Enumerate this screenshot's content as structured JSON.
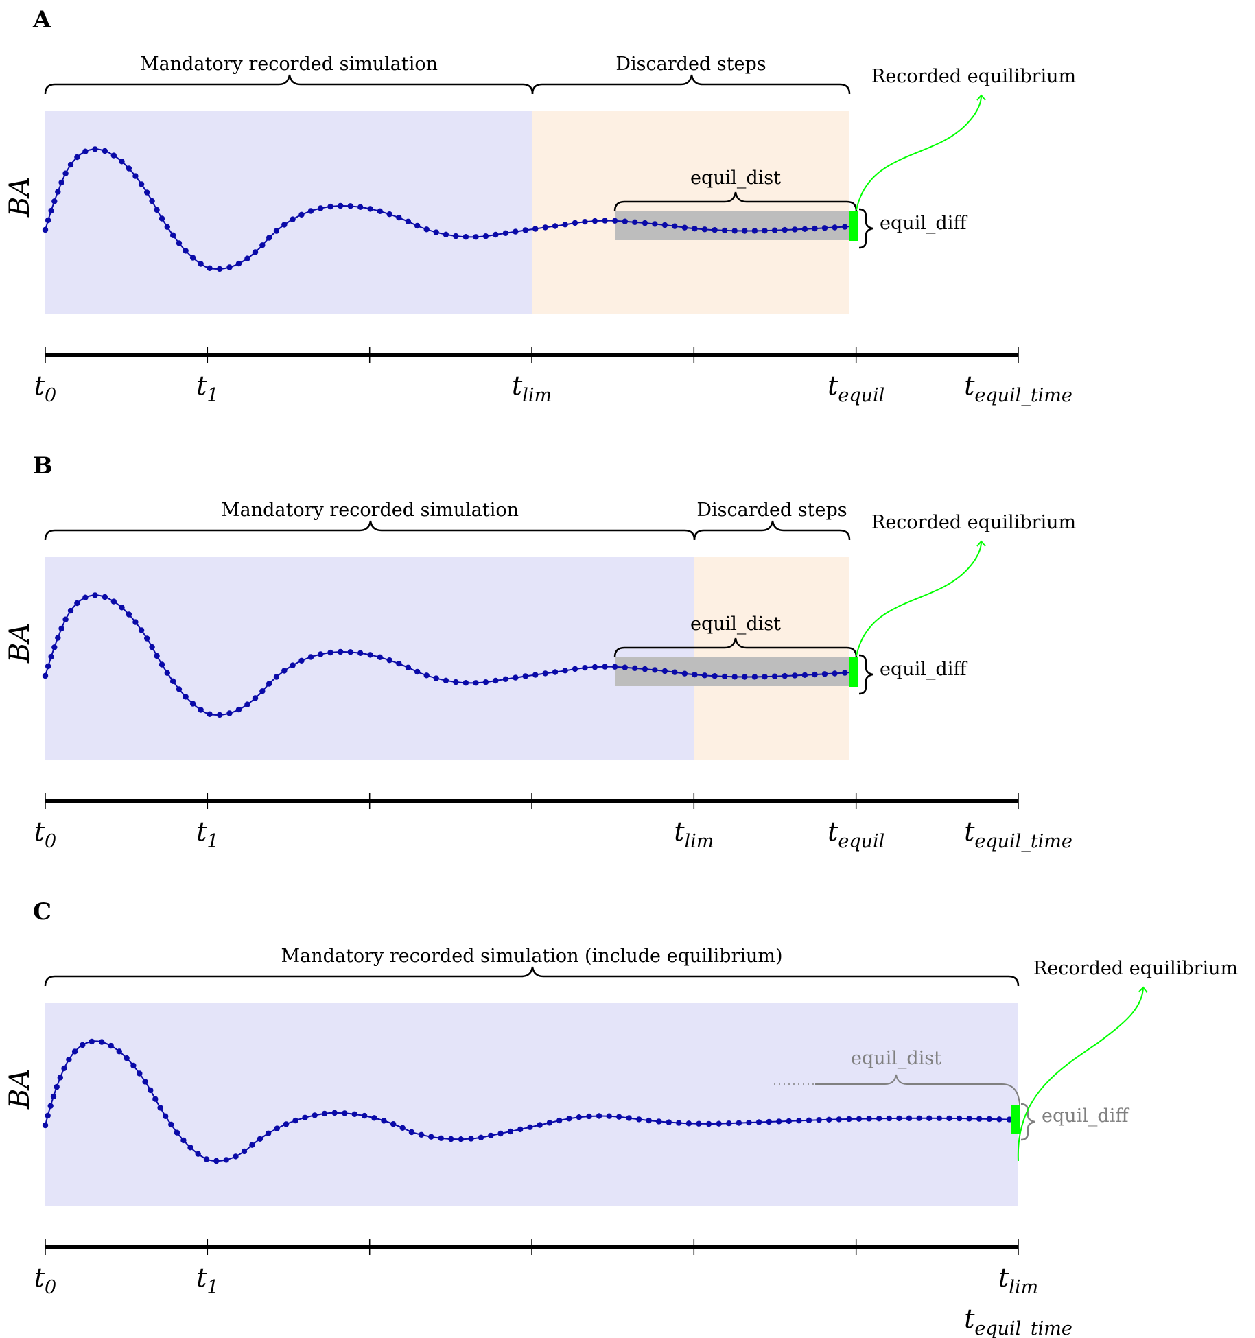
{
  "figure": {
    "colors": {
      "mandatory_region": "#e4e4f9",
      "discarded_region": "#fdf0e3",
      "equil_window": "#bdbdbd",
      "curve": "#0a0aa8",
      "equilibrium_mark": "#00ff00",
      "timeline": "#000000",
      "muted_text": "#808080"
    },
    "panels": [
      {
        "letter": "A",
        "y_label": "BA",
        "mandatory_label": "Mandatory recorded simulation",
        "discarded_label": "Discarded steps",
        "equilibrium_label": "Recorded equilibrium",
        "equil_dist_label": "equil_dist",
        "equil_diff_label": "equil_diff",
        "equil_dist_style": "solid",
        "timeline_ticks": [
          {
            "base": "t",
            "sub": "0"
          },
          {
            "base": "t",
            "sub": "1"
          },
          {
            "base": "",
            "sub": ""
          },
          {
            "base": "t",
            "sub": "lim"
          },
          {
            "base": "",
            "sub": ""
          },
          {
            "base": "t",
            "sub": "equil"
          },
          {
            "base": "t",
            "sub": "equil_time"
          }
        ]
      },
      {
        "letter": "B",
        "y_label": "BA",
        "mandatory_label": "Mandatory recorded simulation",
        "discarded_label": "Discarded steps",
        "equilibrium_label": "Recorded equilibrium",
        "equil_dist_label": "equil_dist",
        "equil_diff_label": "equil_diff",
        "equil_dist_style": "solid",
        "timeline_ticks": [
          {
            "base": "t",
            "sub": "0"
          },
          {
            "base": "t",
            "sub": "1"
          },
          {
            "base": "",
            "sub": ""
          },
          {
            "base": "",
            "sub": ""
          },
          {
            "base": "t",
            "sub": "lim"
          },
          {
            "base": "t",
            "sub": "equil"
          },
          {
            "base": "t",
            "sub": "equil_time"
          }
        ]
      },
      {
        "letter": "C",
        "y_label": "BA",
        "mandatory_label": "Mandatory recorded simulation (include equilibrium)",
        "discarded_label": "",
        "equilibrium_label": "Recorded equilibrium",
        "equil_dist_label": "equil_dist",
        "equil_diff_label": "equil_diff",
        "equil_dist_style": "faded",
        "timeline_ticks": [
          {
            "base": "t",
            "sub": "0"
          },
          {
            "base": "t",
            "sub": "1"
          },
          {
            "base": "",
            "sub": ""
          },
          {
            "base": "",
            "sub": ""
          },
          {
            "base": "",
            "sub": ""
          },
          {
            "base": "",
            "sub": ""
          },
          {
            "base": "t",
            "sub": "lim"
          }
        ],
        "extra_tick_label": {
          "base": "t",
          "sub": "equil_time"
        }
      }
    ]
  }
}
